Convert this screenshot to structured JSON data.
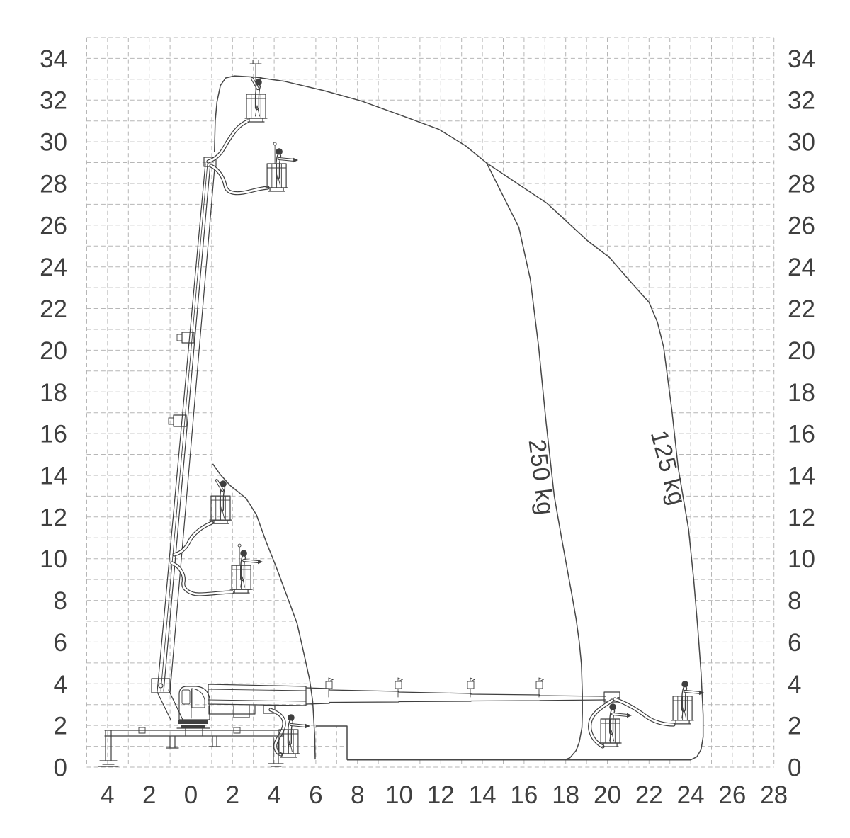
{
  "figure": {
    "description": "Working envelope / load reach diagram of a truck-mounted articulated telescopic aerial work platform",
    "unit": "m",
    "background": "#ffffff"
  },
  "colors": {
    "grid": "#b6b6b6",
    "line": "#3f3f3f",
    "curve": "#474747"
  },
  "axes": {
    "x_tick_labels": [
      "4",
      "2",
      "0",
      "2",
      "4",
      "6",
      "8",
      "10",
      "12",
      "14",
      "16",
      "18",
      "20",
      "22",
      "24",
      "26",
      "28"
    ],
    "x_tick_values_m": [
      -4,
      -2,
      0,
      2,
      4,
      6,
      8,
      10,
      12,
      14,
      16,
      18,
      20,
      22,
      24,
      26,
      28
    ],
    "y_tick_labels": [
      "0",
      "2",
      "4",
      "6",
      "8",
      "10",
      "12",
      "14",
      "16",
      "18",
      "20",
      "22",
      "24",
      "26",
      "28",
      "30",
      "32",
      "34"
    ],
    "y_tick_values_m": [
      0,
      2,
      4,
      6,
      8,
      10,
      12,
      14,
      16,
      18,
      20,
      22,
      24,
      26,
      28,
      30,
      32,
      34
    ],
    "x_range_m": [
      -5,
      28
    ],
    "y_range_m": [
      0,
      35
    ],
    "grid_step_m": 1,
    "grid_style": "dashed"
  },
  "chart_data": {
    "type": "line",
    "title": "",
    "xlabel": "",
    "ylabel": "",
    "legend_position": "none",
    "series": [
      {
        "name": "envelope-top-edge",
        "points_m": [
          [
            1.13,
            29.5
          ],
          [
            1.17,
            31.0
          ],
          [
            1.25,
            31.9
          ],
          [
            1.42,
            32.7
          ],
          [
            1.67,
            33.06
          ],
          [
            2.1,
            33.16
          ],
          [
            3.1,
            33.1
          ],
          [
            4.5,
            32.9
          ],
          [
            6.4,
            32.45
          ],
          [
            8.2,
            31.95
          ],
          [
            10.0,
            31.3
          ],
          [
            11.9,
            30.6
          ],
          [
            13.2,
            29.8
          ],
          [
            14.2,
            28.98
          ]
        ]
      },
      {
        "name": "250 kg limit",
        "label": "250 kg",
        "points_m": [
          [
            14.2,
            28.98
          ],
          [
            15.75,
            25.9
          ],
          [
            16.3,
            23.4
          ],
          [
            16.7,
            20.15
          ],
          [
            17.05,
            16.6
          ],
          [
            17.45,
            13.0
          ],
          [
            17.8,
            11.0
          ],
          [
            18.3,
            8.25
          ],
          [
            18.5,
            7.1
          ],
          [
            18.65,
            6.0
          ],
          [
            18.75,
            4.95
          ],
          [
            18.8,
            3.5
          ],
          [
            18.8,
            2.6
          ],
          [
            18.78,
            1.9
          ],
          [
            18.65,
            1.2
          ],
          [
            18.5,
            0.8
          ],
          [
            18.2,
            0.45
          ],
          [
            18.0,
            0.37
          ]
        ]
      },
      {
        "name": "125 kg limit",
        "label": "125 kg",
        "points_m": [
          [
            14.2,
            28.98
          ],
          [
            17.1,
            27.05
          ],
          [
            19.05,
            25.25
          ],
          [
            20.1,
            24.45
          ],
          [
            21.1,
            23.3
          ],
          [
            22.0,
            22.3
          ],
          [
            22.4,
            21.35
          ],
          [
            22.7,
            20.15
          ],
          [
            23.1,
            17.1
          ],
          [
            23.4,
            14.35
          ],
          [
            23.9,
            11.4
          ],
          [
            24.15,
            8.95
          ],
          [
            24.35,
            6.55
          ],
          [
            24.5,
            4.5
          ],
          [
            24.6,
            2.5
          ],
          [
            24.6,
            1.45
          ],
          [
            24.5,
            0.85
          ],
          [
            24.3,
            0.5
          ],
          [
            24.0,
            0.35
          ]
        ]
      },
      {
        "name": "envelope-bottom-edge",
        "points_m": [
          [
            24.0,
            0.35
          ],
          [
            7.5,
            0.35
          ]
        ]
      },
      {
        "name": "envelope-step",
        "points_m": [
          [
            7.5,
            0.35
          ],
          [
            7.5,
            1.97
          ],
          [
            6.0,
            1.97
          ]
        ]
      },
      {
        "name": "inner-boundary",
        "points_m": [
          [
            5.97,
            0.37
          ],
          [
            5.95,
            1.45
          ],
          [
            5.85,
            3.15
          ],
          [
            5.7,
            4.2
          ],
          [
            5.45,
            5.35
          ],
          [
            5.1,
            6.9
          ],
          [
            4.6,
            8.25
          ],
          [
            4.1,
            9.6
          ],
          [
            3.6,
            10.85
          ],
          [
            3.15,
            12.1
          ],
          [
            2.65,
            12.9
          ],
          [
            1.9,
            13.5
          ],
          [
            1.4,
            14.05
          ],
          [
            1.05,
            14.55
          ]
        ]
      }
    ],
    "curve_labels": [
      {
        "text": "250 kg",
        "x_m": 16.45,
        "y_m": 13.85,
        "angle_deg": 83
      },
      {
        "text": "125 kg",
        "x_m": 22.55,
        "y_m": 14.25,
        "angle_deg": 75
      }
    ],
    "machine_positions_m": [
      {
        "id": "p1",
        "x_m": 2.67,
        "y_m": 32.28,
        "variant": "pole"
      },
      {
        "id": "p2",
        "x_m": 3.66,
        "y_m": 28.95,
        "variant": "point-wand"
      },
      {
        "id": "p3",
        "x_m": 0.97,
        "y_m": 13.01,
        "variant": "arm-up"
      },
      {
        "id": "p4",
        "x_m": 1.96,
        "y_m": 9.68,
        "variant": "point-wand"
      },
      {
        "id": "p5",
        "x_m": 23.15,
        "y_m": 3.4,
        "variant": "point"
      },
      {
        "id": "p6",
        "x_m": 19.68,
        "y_m": 2.31,
        "variant": "point"
      },
      {
        "id": "p7",
        "x_m": 4.23,
        "y_m": 1.8,
        "variant": "point"
      }
    ]
  }
}
